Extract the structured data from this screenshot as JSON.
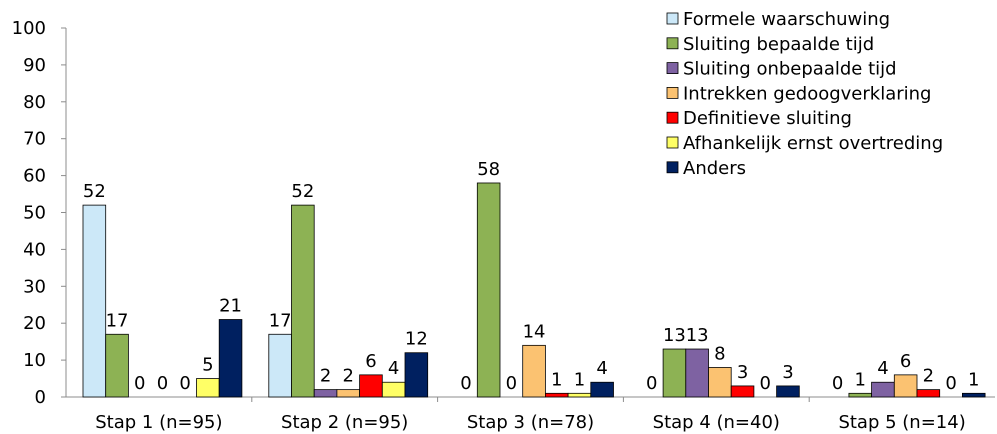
{
  "chart_data": {
    "type": "bar",
    "title": "",
    "xlabel": "",
    "ylabel": "",
    "ylim": [
      0,
      100
    ],
    "yticks": [
      0,
      10,
      20,
      30,
      40,
      50,
      60,
      70,
      80,
      90,
      100
    ],
    "grid": false,
    "legend_position": "top-right",
    "categories": [
      "Stap 1 (n=95)",
      "Stap 2 (n=95)",
      "Stap 3 (n=78)",
      "Stap 4 (n=40)",
      "Stap 5 (n=14)"
    ],
    "series": [
      {
        "name": "Formele waarschuwing",
        "color": "#cce8f8",
        "values": [
          52,
          17,
          0,
          0,
          0
        ]
      },
      {
        "name": "Sluiting bepaalde tijd",
        "color": "#8db254",
        "values": [
          17,
          52,
          58,
          13,
          1
        ]
      },
      {
        "name": "Sluiting onbepaalde tijd",
        "color": "#7e62a2",
        "values": [
          0,
          2,
          0,
          13,
          4
        ]
      },
      {
        "name": "Intrekken gedoogverklaring",
        "color": "#fbc271",
        "values": [
          0,
          2,
          14,
          8,
          6
        ]
      },
      {
        "name": "Definitieve sluiting",
        "color": "#ff0000",
        "values": [
          0,
          6,
          1,
          3,
          2
        ]
      },
      {
        "name": "Afhankelijk ernst overtreding",
        "color": "#ffff66",
        "values": [
          5,
          4,
          1,
          0,
          0
        ]
      },
      {
        "name": "Anders",
        "color": "#002060",
        "values": [
          21,
          12,
          4,
          3,
          1
        ]
      }
    ]
  }
}
